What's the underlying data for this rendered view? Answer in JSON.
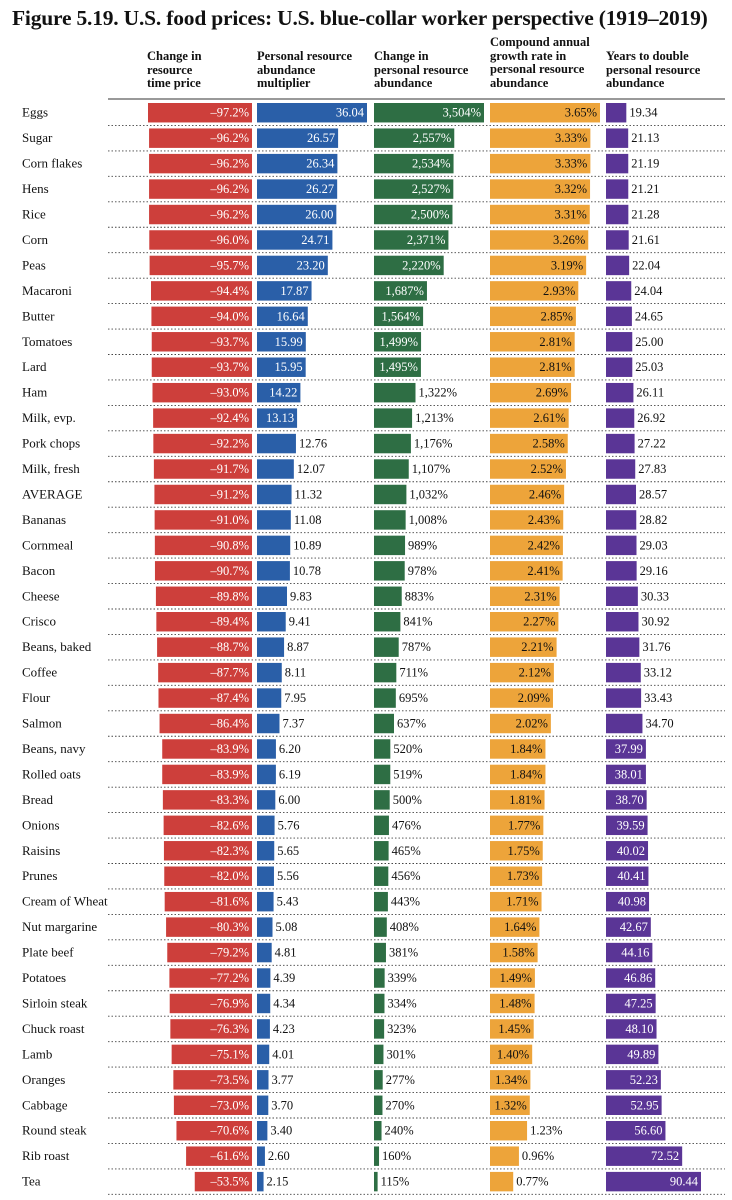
{
  "title": "Figure 5.19. U.S. food prices: U.S. blue-collar worker perspective (1919–2019)",
  "columns": [
    {
      "lines": [
        "Change in",
        "resource",
        "time price"
      ]
    },
    {
      "lines": [
        "Personal resource",
        "abundance",
        "multiplier"
      ]
    },
    {
      "lines": [
        "Change in",
        "personal resource",
        "abundance"
      ]
    },
    {
      "lines": [
        "Compound annual",
        "growth rate in",
        "personal resource",
        "abundance"
      ]
    },
    {
      "lines": [
        "Years to double",
        "personal resource",
        "abundance"
      ]
    }
  ],
  "colors": {
    "time_price": "#cd3f3b",
    "multiplier": "#2a5fa8",
    "change": "#2e6e44",
    "cagr": "#eda43a",
    "years": "#5a3596"
  },
  "chart_data": {
    "type": "table",
    "categories": [
      "Eggs",
      "Sugar",
      "Corn flakes",
      "Hens",
      "Rice",
      "Corn",
      "Peas",
      "Macaroni",
      "Butter",
      "Tomatoes",
      "Lard",
      "Ham",
      "Milk, evp.",
      "Pork chops",
      "Milk, fresh",
      "AVERAGE",
      "Bananas",
      "Cornmeal",
      "Bacon",
      "Cheese",
      "Crisco",
      "Beans, baked",
      "Coffee",
      "Flour",
      "Salmon",
      "Beans, navy",
      "Rolled oats",
      "Bread",
      "Onions",
      "Raisins",
      "Prunes",
      "Cream of Wheat",
      "Nut margarine",
      "Plate beef",
      "Potatoes",
      "Sirloin steak",
      "Chuck roast",
      "Lamb",
      "Oranges",
      "Cabbage",
      "Round steak",
      "Rib roast",
      "Tea"
    ],
    "series": [
      {
        "name": "Change in resource time price",
        "labels": [
          "–97.2%",
          "–96.2%",
          "–96.2%",
          "–96.2%",
          "–96.2%",
          "–96.0%",
          "–95.7%",
          "–94.4%",
          "–94.0%",
          "–93.7%",
          "–93.7%",
          "–93.0%",
          "–92.4%",
          "–92.2%",
          "–91.7%",
          "–91.2%",
          "–91.0%",
          "–90.8%",
          "–90.7%",
          "–89.8%",
          "–89.4%",
          "–88.7%",
          "–87.7%",
          "–87.4%",
          "–86.4%",
          "–83.9%",
          "–83.9%",
          "–83.3%",
          "–82.6%",
          "–82.3%",
          "–82.0%",
          "–81.6%",
          "–80.3%",
          "–79.2%",
          "–77.2%",
          "–76.9%",
          "–76.3%",
          "–75.1%",
          "–73.5%",
          "–73.0%",
          "–70.6%",
          "–61.6%",
          "–53.5%"
        ],
        "values": [
          -97.2,
          -96.2,
          -96.2,
          -96.2,
          -96.2,
          -96.0,
          -95.7,
          -94.4,
          -94.0,
          -93.7,
          -93.7,
          -93.0,
          -92.4,
          -92.2,
          -91.7,
          -91.2,
          -91.0,
          -90.8,
          -90.7,
          -89.8,
          -89.4,
          -88.7,
          -87.7,
          -87.4,
          -86.4,
          -83.9,
          -83.9,
          -83.3,
          -82.6,
          -82.3,
          -82.0,
          -81.6,
          -80.3,
          -79.2,
          -77.2,
          -76.9,
          -76.3,
          -75.1,
          -73.5,
          -73.0,
          -70.6,
          -61.6,
          -53.5
        ]
      },
      {
        "name": "Personal resource abundance multiplier",
        "labels": [
          "36.04",
          "26.57",
          "26.34",
          "26.27",
          "26.00",
          "24.71",
          "23.20",
          "17.87",
          "16.64",
          "15.99",
          "15.95",
          "14.22",
          "13.13",
          "12.76",
          "12.07",
          "11.32",
          "11.08",
          "10.89",
          "10.78",
          "9.83",
          "9.41",
          "8.87",
          "8.11",
          "7.95",
          "7.37",
          "6.20",
          "6.19",
          "6.00",
          "5.76",
          "5.65",
          "5.56",
          "5.43",
          "5.08",
          "4.81",
          "4.39",
          "4.34",
          "4.23",
          "4.01",
          "3.77",
          "3.70",
          "3.40",
          "2.60",
          "2.15"
        ],
        "values": [
          36.04,
          26.57,
          26.34,
          26.27,
          26.0,
          24.71,
          23.2,
          17.87,
          16.64,
          15.99,
          15.95,
          14.22,
          13.13,
          12.76,
          12.07,
          11.32,
          11.08,
          10.89,
          10.78,
          9.83,
          9.41,
          8.87,
          8.11,
          7.95,
          7.37,
          6.2,
          6.19,
          6.0,
          5.76,
          5.65,
          5.56,
          5.43,
          5.08,
          4.81,
          4.39,
          4.34,
          4.23,
          4.01,
          3.77,
          3.7,
          3.4,
          2.6,
          2.15
        ]
      },
      {
        "name": "Change in personal resource abundance",
        "labels": [
          "3,504%",
          "2,557%",
          "2,534%",
          "2,527%",
          "2,500%",
          "2,371%",
          "2,220%",
          "1,687%",
          "1,564%",
          "1,499%",
          "1,495%",
          "1,322%",
          "1,213%",
          "1,176%",
          "1,107%",
          "1,032%",
          "1,008%",
          "989%",
          "978%",
          "883%",
          "841%",
          "787%",
          "711%",
          "695%",
          "637%",
          "520%",
          "519%",
          "500%",
          "476%",
          "465%",
          "456%",
          "443%",
          "408%",
          "381%",
          "339%",
          "334%",
          "323%",
          "301%",
          "277%",
          "270%",
          "240%",
          "160%",
          "115%"
        ],
        "values": [
          3504,
          2557,
          2534,
          2527,
          2500,
          2371,
          2220,
          1687,
          1564,
          1499,
          1495,
          1322,
          1213,
          1176,
          1107,
          1032,
          1008,
          989,
          978,
          883,
          841,
          787,
          711,
          695,
          637,
          520,
          519,
          500,
          476,
          465,
          456,
          443,
          408,
          381,
          339,
          334,
          323,
          301,
          277,
          270,
          240,
          160,
          115
        ]
      },
      {
        "name": "Compound annual growth rate in personal resource abundance",
        "labels": [
          "3.65%",
          "3.33%",
          "3.33%",
          "3.32%",
          "3.31%",
          "3.26%",
          "3.19%",
          "2.93%",
          "2.85%",
          "2.81%",
          "2.81%",
          "2.69%",
          "2.61%",
          "2.58%",
          "2.52%",
          "2.46%",
          "2.43%",
          "2.42%",
          "2.41%",
          "2.31%",
          "2.27%",
          "2.21%",
          "2.12%",
          "2.09%",
          "2.02%",
          "1.84%",
          "1.84%",
          "1.81%",
          "1.77%",
          "1.75%",
          "1.73%",
          "1.71%",
          "1.64%",
          "1.58%",
          "1.49%",
          "1.48%",
          "1.45%",
          "1.40%",
          "1.34%",
          "1.32%",
          "1.23%",
          "0.96%",
          "0.77%"
        ],
        "values": [
          3.65,
          3.33,
          3.33,
          3.32,
          3.31,
          3.26,
          3.19,
          2.93,
          2.85,
          2.81,
          2.81,
          2.69,
          2.61,
          2.58,
          2.52,
          2.46,
          2.43,
          2.42,
          2.41,
          2.31,
          2.27,
          2.21,
          2.12,
          2.09,
          2.02,
          1.84,
          1.84,
          1.81,
          1.77,
          1.75,
          1.73,
          1.71,
          1.64,
          1.58,
          1.49,
          1.48,
          1.45,
          1.4,
          1.34,
          1.32,
          1.23,
          0.96,
          0.77
        ]
      },
      {
        "name": "Years to double personal resource abundance",
        "labels": [
          "19.34",
          "21.13",
          "21.19",
          "21.21",
          "21.28",
          "21.61",
          "22.04",
          "24.04",
          "24.65",
          "25.00",
          "25.03",
          "26.11",
          "26.92",
          "27.22",
          "27.83",
          "28.57",
          "28.82",
          "29.03",
          "29.16",
          "30.33",
          "30.92",
          "31.76",
          "33.12",
          "33.43",
          "34.70",
          "37.99",
          "38.01",
          "38.70",
          "39.59",
          "40.02",
          "40.41",
          "40.98",
          "42.67",
          "44.16",
          "46.86",
          "47.25",
          "48.10",
          "49.89",
          "52.23",
          "52.95",
          "56.60",
          "72.52",
          "90.44"
        ],
        "values": [
          19.34,
          21.13,
          21.19,
          21.21,
          21.28,
          21.61,
          22.04,
          24.04,
          24.65,
          25.0,
          25.03,
          26.11,
          26.92,
          27.22,
          27.83,
          28.57,
          28.82,
          29.03,
          29.16,
          30.33,
          30.92,
          31.76,
          33.12,
          33.43,
          34.7,
          37.99,
          38.01,
          38.7,
          39.59,
          40.02,
          40.41,
          40.98,
          42.67,
          44.16,
          46.86,
          47.25,
          48.1,
          49.89,
          52.23,
          52.95,
          56.6,
          72.52,
          90.44
        ]
      }
    ]
  }
}
